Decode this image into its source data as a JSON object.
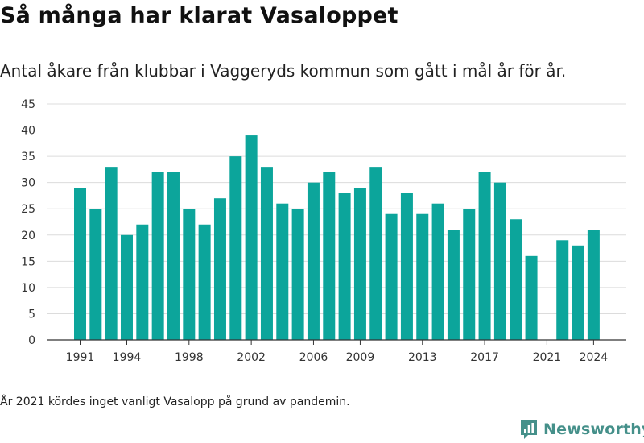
{
  "header": {
    "title": "Så många har klarat Vasaloppet",
    "subtitle": "Antal åkare från klubbar i Vaggeryds kommun som gått i mål år för år."
  },
  "footer": {
    "note": "År 2021 kördes inget vanligt Vasalopp på grund av pandemin.",
    "brand": "Newsworthy"
  },
  "colors": {
    "bar": "#0ca59b",
    "grid": "#dcdcdc",
    "axis": "#333333",
    "brand": "#45908a"
  },
  "chart_data": {
    "type": "bar",
    "title": "Så många har klarat Vasaloppet",
    "subtitle": "Antal åkare från klubbar i Vaggeryds kommun som gått i mål år för år.",
    "xlabel": "",
    "ylabel": "",
    "ylim": [
      0,
      45
    ],
    "yticks": [
      0,
      5,
      10,
      15,
      20,
      25,
      30,
      35,
      40,
      45
    ],
    "grid": true,
    "xtick_labels": [
      "1991",
      "1994",
      "1998",
      "2002",
      "2006",
      "2009",
      "2013",
      "2017",
      "2021",
      "2024"
    ],
    "categories": [
      "1991",
      "1992",
      "1993",
      "1994",
      "1995",
      "1996",
      "1997",
      "1998",
      "1999",
      "2000",
      "2001",
      "2002",
      "2003",
      "2004",
      "2005",
      "2006",
      "2007",
      "2008",
      "2009",
      "2010",
      "2011",
      "2012",
      "2013",
      "2014",
      "2015",
      "2016",
      "2017",
      "2018",
      "2019",
      "2020",
      "2021",
      "2022",
      "2023",
      "2024"
    ],
    "values": [
      29,
      25,
      33,
      20,
      22,
      32,
      32,
      25,
      22,
      27,
      35,
      39,
      33,
      26,
      25,
      30,
      32,
      28,
      29,
      33,
      24,
      28,
      24,
      26,
      21,
      25,
      32,
      30,
      23,
      16,
      null,
      19,
      18,
      21
    ]
  }
}
